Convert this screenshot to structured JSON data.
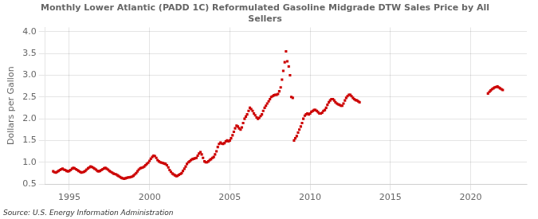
{
  "chart_data": {
    "type": "scatter",
    "title": "Monthly Lower Atlantic (PADD 1C) Reformulated Gasoline Midgrade DTW Sales Price by All\nSellers",
    "y_label": "Dollars per Gallon",
    "annotations": [
      "Source: U.S. Energy Information Administration"
    ],
    "color": "#cc0000",
    "marker": "square",
    "grid": true,
    "xlim": [
      1993.5,
      2023.5
    ],
    "ylim": [
      0.5,
      4.1
    ],
    "xticks": [
      1995,
      2000,
      2005,
      2010,
      2015,
      2020
    ],
    "yticks": [
      0.5,
      {
        "value": 1.0,
        "label": "1.0"
      },
      1.5,
      {
        "value": 2.0,
        "label": "2.0"
      },
      2.5,
      {
        "value": 3.0,
        "label": "3.0"
      },
      3.5,
      {
        "value": 4.0,
        "label": "4.0"
      }
    ],
    "x": [
      1994.0,
      1994.08,
      1994.17,
      1994.25,
      1994.33,
      1994.42,
      1994.5,
      1994.58,
      1994.67,
      1994.75,
      1994.83,
      1994.92,
      1995.0,
      1995.08,
      1995.17,
      1995.25,
      1995.33,
      1995.42,
      1995.5,
      1995.58,
      1995.67,
      1995.75,
      1995.83,
      1995.92,
      1996.0,
      1996.08,
      1996.17,
      1996.25,
      1996.33,
      1996.42,
      1996.5,
      1996.58,
      1996.67,
      1996.75,
      1996.83,
      1996.92,
      1997.0,
      1997.08,
      1997.17,
      1997.25,
      1997.33,
      1997.42,
      1997.5,
      1997.58,
      1997.67,
      1997.75,
      1997.83,
      1997.92,
      1998.0,
      1998.08,
      1998.17,
      1998.25,
      1998.33,
      1998.42,
      1998.5,
      1998.58,
      1998.67,
      1998.75,
      1998.83,
      1998.92,
      1999.0,
      1999.08,
      1999.17,
      1999.25,
      1999.33,
      1999.42,
      1999.5,
      1999.58,
      1999.67,
      1999.75,
      1999.83,
      1999.92,
      2000.0,
      2000.08,
      2000.17,
      2000.25,
      2000.33,
      2000.42,
      2000.5,
      2000.58,
      2000.67,
      2000.75,
      2000.83,
      2000.92,
      2001.0,
      2001.08,
      2001.17,
      2001.25,
      2001.33,
      2001.42,
      2001.5,
      2001.58,
      2001.67,
      2001.75,
      2001.83,
      2001.92,
      2002.0,
      2002.08,
      2002.17,
      2002.25,
      2002.33,
      2002.42,
      2002.5,
      2002.58,
      2002.67,
      2002.75,
      2002.83,
      2002.92,
      2003.0,
      2003.08,
      2003.17,
      2003.25,
      2003.33,
      2003.42,
      2003.5,
      2003.58,
      2003.67,
      2003.75,
      2003.83,
      2003.92,
      2004.0,
      2004.08,
      2004.17,
      2004.25,
      2004.33,
      2004.42,
      2004.5,
      2004.58,
      2004.67,
      2004.75,
      2004.83,
      2004.92,
      2005.0,
      2005.08,
      2005.17,
      2005.25,
      2005.33,
      2005.42,
      2005.5,
      2005.58,
      2005.67,
      2005.75,
      2005.83,
      2005.92,
      2006.0,
      2006.08,
      2006.17,
      2006.25,
      2006.33,
      2006.42,
      2006.5,
      2006.58,
      2006.67,
      2006.75,
      2006.83,
      2006.92,
      2007.0,
      2007.08,
      2007.17,
      2007.25,
      2007.33,
      2007.42,
      2007.5,
      2007.58,
      2007.67,
      2007.75,
      2007.83,
      2007.92,
      2008.0,
      2008.08,
      2008.17,
      2008.25,
      2008.33,
      2008.42,
      2008.5,
      2008.58,
      2008.67,
      2008.75,
      2008.83,
      2008.92,
      2009.0,
      2009.08,
      2009.17,
      2009.25,
      2009.33,
      2009.42,
      2009.5,
      2009.58,
      2009.67,
      2009.75,
      2009.83,
      2009.92,
      2010.0,
      2010.08,
      2010.17,
      2010.25,
      2010.33,
      2010.42,
      2010.5,
      2010.58,
      2010.67,
      2010.75,
      2010.83,
      2010.92,
      2011.0,
      2011.08,
      2011.17,
      2011.25,
      2011.33,
      2011.42,
      2011.5,
      2011.58,
      2011.67,
      2011.75,
      2011.83,
      2011.92,
      2012.0,
      2012.08,
      2012.17,
      2012.25,
      2012.33,
      2012.42,
      2012.5,
      2012.58,
      2012.67,
      2012.75,
      2012.83,
      2012.92,
      2013.0,
      2013.08,
      2021.08,
      2021.17,
      2021.25,
      2021.33,
      2021.42,
      2021.5,
      2021.58,
      2021.67,
      2021.75,
      2021.83,
      2021.92,
      2022.0
    ],
    "values": [
      0.79,
      0.77,
      0.76,
      0.78,
      0.8,
      0.82,
      0.84,
      0.85,
      0.83,
      0.82,
      0.8,
      0.79,
      0.8,
      0.82,
      0.85,
      0.87,
      0.86,
      0.84,
      0.82,
      0.8,
      0.78,
      0.76,
      0.77,
      0.78,
      0.8,
      0.83,
      0.86,
      0.88,
      0.9,
      0.89,
      0.87,
      0.85,
      0.83,
      0.8,
      0.79,
      0.8,
      0.82,
      0.84,
      0.86,
      0.87,
      0.85,
      0.83,
      0.8,
      0.78,
      0.76,
      0.74,
      0.73,
      0.72,
      0.7,
      0.68,
      0.66,
      0.64,
      0.63,
      0.62,
      0.63,
      0.64,
      0.65,
      0.65,
      0.66,
      0.67,
      0.69,
      0.72,
      0.75,
      0.79,
      0.83,
      0.86,
      0.87,
      0.88,
      0.9,
      0.93,
      0.96,
      0.99,
      1.03,
      1.08,
      1.12,
      1.15,
      1.14,
      1.1,
      1.05,
      1.02,
      1.0,
      0.99,
      0.98,
      0.97,
      0.96,
      0.93,
      0.88,
      0.82,
      0.78,
      0.74,
      0.72,
      0.7,
      0.68,
      0.69,
      0.71,
      0.73,
      0.75,
      0.8,
      0.85,
      0.9,
      0.96,
      1.0,
      1.02,
      1.05,
      1.07,
      1.08,
      1.09,
      1.1,
      1.15,
      1.2,
      1.23,
      1.18,
      1.1,
      1.02,
      1.0,
      1.0,
      1.02,
      1.05,
      1.07,
      1.1,
      1.12,
      1.18,
      1.25,
      1.35,
      1.42,
      1.45,
      1.43,
      1.42,
      1.44,
      1.48,
      1.5,
      1.48,
      1.5,
      1.55,
      1.62,
      1.7,
      1.78,
      1.84,
      1.82,
      1.78,
      1.75,
      1.8,
      1.9,
      2.0,
      2.05,
      2.1,
      2.18,
      2.25,
      2.22,
      2.18,
      2.12,
      2.08,
      2.03,
      2.0,
      2.02,
      2.06,
      2.1,
      2.18,
      2.25,
      2.3,
      2.35,
      2.4,
      2.45,
      2.5,
      2.52,
      2.54,
      2.55,
      2.55,
      2.57,
      2.63,
      2.72,
      2.9,
      3.1,
      3.3,
      3.55,
      3.32,
      3.2,
      3.0,
      2.5,
      2.48,
      1.5,
      1.55,
      1.6,
      1.68,
      1.75,
      1.82,
      1.9,
      2.0,
      2.07,
      2.1,
      2.12,
      2.1,
      2.12,
      2.16,
      2.18,
      2.2,
      2.2,
      2.18,
      2.15,
      2.12,
      2.12,
      2.14,
      2.18,
      2.2,
      2.25,
      2.32,
      2.38,
      2.42,
      2.45,
      2.45,
      2.42,
      2.38,
      2.35,
      2.33,
      2.32,
      2.3,
      2.3,
      2.35,
      2.42,
      2.48,
      2.52,
      2.55,
      2.55,
      2.52,
      2.48,
      2.45,
      2.43,
      2.42,
      2.4,
      2.38,
      2.58,
      2.62,
      2.65,
      2.68,
      2.7,
      2.72,
      2.73,
      2.74,
      2.72,
      2.7,
      2.68,
      2.66
    ]
  }
}
